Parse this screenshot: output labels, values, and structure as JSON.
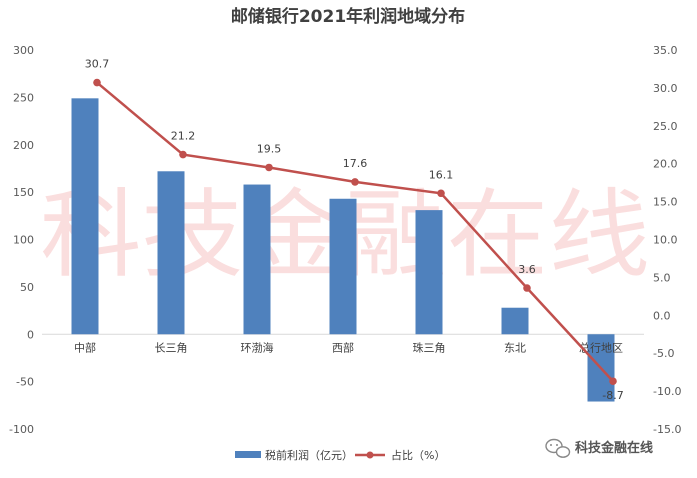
{
  "chart_data": {
    "type": "bar+line",
    "title": "邮储银行2021年利润地域分布",
    "categories": [
      "中部",
      "长三角",
      "环渤海",
      "西部",
      "珠三角",
      "东北",
      "总行地区"
    ],
    "series": [
      {
        "name": "税前利润（亿元）",
        "type": "bar",
        "axis": "left",
        "values": [
          249,
          172,
          158,
          143,
          131,
          28,
          -71
        ]
      },
      {
        "name": "占比（%）",
        "type": "line",
        "axis": "right",
        "values": [
          30.7,
          21.2,
          19.5,
          17.6,
          16.1,
          3.6,
          -8.7
        ],
        "labels": [
          "30.7",
          "21.2",
          "19.5",
          "17.6",
          "16.1",
          "3.6",
          "-8.7"
        ]
      }
    ],
    "y_left": {
      "ylim": [
        -100,
        300
      ],
      "ticks": [
        "300",
        "250",
        "200",
        "150",
        "100",
        "50",
        "0",
        "-50",
        "-100"
      ]
    },
    "y_right": {
      "ylim": [
        -15,
        35
      ],
      "ticks": [
        "35.0",
        "30.0",
        "25.0",
        "20.0",
        "15.0",
        "10.0",
        "5.0",
        "0.0",
        "-5.0",
        "-10.0",
        "-15.0"
      ]
    },
    "grid": false,
    "legend": "bottom",
    "colors": {
      "bar": "#4f81bd",
      "line": "#c0504d"
    }
  },
  "watermark": "科技金融在线",
  "brand": {
    "text": "科技金融在线",
    "icon": "wechat-icon"
  }
}
